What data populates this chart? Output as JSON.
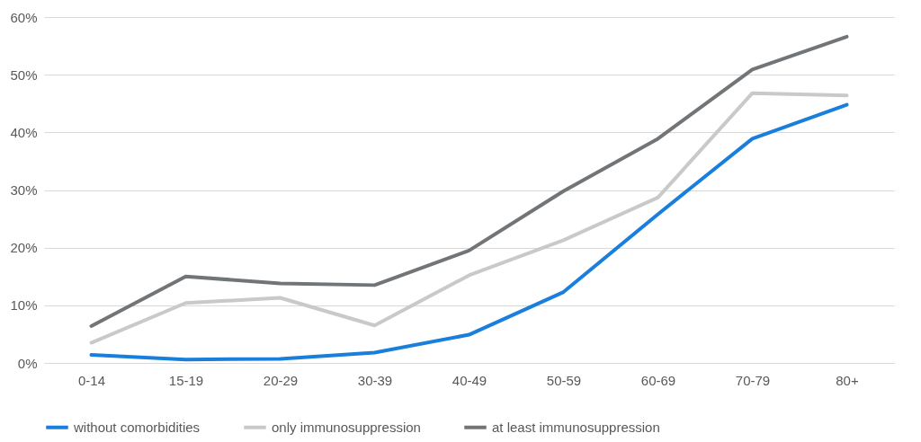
{
  "chart_data": {
    "type": "line",
    "categories": [
      "0-14",
      "15-19",
      "20-29",
      "30-39",
      "40-49",
      "50-59",
      "60-69",
      "70-79",
      "80+"
    ],
    "series": [
      {
        "name": "without comorbidities",
        "color": "#1a7fdc",
        "values": [
          1.4,
          0.6,
          0.7,
          1.8,
          4.9,
          12.3,
          25.8,
          38.9,
          44.8
        ]
      },
      {
        "name": "only immunosuppression",
        "color": "#c8c9c9",
        "values": [
          3.5,
          10.4,
          11.3,
          6.5,
          15.2,
          21.3,
          28.7,
          46.8,
          46.4
        ]
      },
      {
        "name": "at least immunosuppression",
        "color": "#717578",
        "values": [
          6.4,
          15.0,
          13.8,
          13.5,
          19.5,
          29.8,
          38.9,
          50.9,
          56.6
        ]
      }
    ],
    "ylim": [
      0,
      60
    ],
    "yticks": [
      {
        "value": 0,
        "label": "0%"
      },
      {
        "value": 10,
        "label": "10%"
      },
      {
        "value": 20,
        "label": "20%"
      },
      {
        "value": 30,
        "label": "30%"
      },
      {
        "value": 40,
        "label": "40%"
      },
      {
        "value": 50,
        "label": "50%"
      },
      {
        "value": 60,
        "label": "60%"
      }
    ],
    "grid": "y",
    "legend": "bottom",
    "marker": "none",
    "line_style": "solid"
  }
}
